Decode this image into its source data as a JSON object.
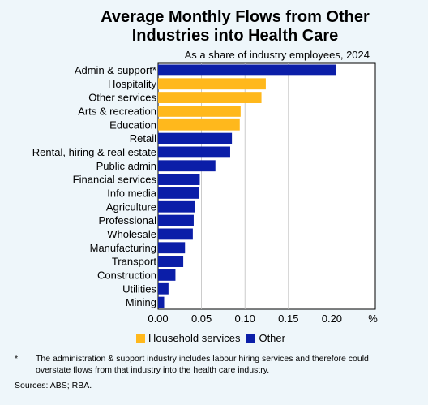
{
  "title_line1": "Average Monthly Flows from Other",
  "title_line2": "Industries into Health Care",
  "subtitle": "As a share of industry employees, 2024",
  "legend": [
    {
      "label": "Household services",
      "color": "#ffb81c"
    },
    {
      "label": "Other",
      "color": "#0b1ea8"
    }
  ],
  "footnote_mark": "*",
  "footnote": "The administration & support industry includes labour hiring services and therefore could overstate flows from that industry into the health care industry.",
  "sources": "Sources: ABS; RBA.",
  "chart_data": {
    "type": "bar",
    "orientation": "horizontal",
    "xlim": [
      0,
      0.25
    ],
    "xticks": [
      "0.00",
      "0.05",
      "0.10",
      "0.15",
      "0.20"
    ],
    "xunit": "%",
    "grid": true,
    "legend_position": "bottom",
    "categories": [
      "Admin & support*",
      "Hospitality",
      "Other services",
      "Arts & recreation",
      "Education",
      "Retail",
      "Rental, hiring & real estate",
      "Public admin",
      "Financial services",
      "Info media",
      "Agriculture",
      "Professional",
      "Wholesale",
      "Manufacturing",
      "Transport",
      "Construction",
      "Utilities",
      "Mining"
    ],
    "values": [
      0.205,
      0.124,
      0.119,
      0.095,
      0.094,
      0.085,
      0.083,
      0.066,
      0.048,
      0.047,
      0.042,
      0.041,
      0.04,
      0.031,
      0.029,
      0.02,
      0.012,
      0.007
    ],
    "groups": [
      "Other",
      "Household services",
      "Household services",
      "Household services",
      "Household services",
      "Other",
      "Other",
      "Other",
      "Other",
      "Other",
      "Other",
      "Other",
      "Other",
      "Other",
      "Other",
      "Other",
      "Other",
      "Other"
    ]
  }
}
